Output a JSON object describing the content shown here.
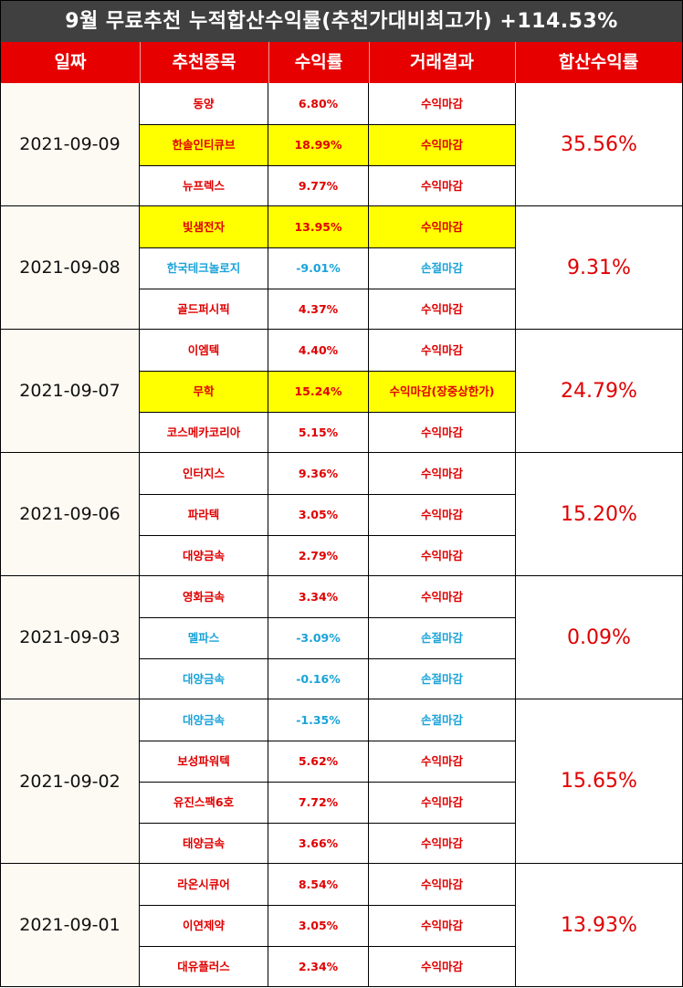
{
  "title": "9월 무료추천 누적합산수익률(추천가대비최고가) +114.53%",
  "headers": [
    "일짜",
    "추천종목",
    "수익률",
    "거래결과",
    "합산수익률"
  ],
  "colors": {
    "title_bg": "#404040",
    "header_bg": "#e60000",
    "highlight": "#ffff00",
    "profit": "#e00000",
    "loss": "#1aa3d9"
  },
  "groups": [
    {
      "date": "2021-09-09",
      "total": "35.56%",
      "rows": [
        {
          "name": "동양",
          "ret": "6.80%",
          "result": "수익마감",
          "tone": "up",
          "hl": false
        },
        {
          "name": "한솔인티큐브",
          "ret": "18.99%",
          "result": "수익마감",
          "tone": "up",
          "hl": true
        },
        {
          "name": "뉴프렉스",
          "ret": "9.77%",
          "result": "수익마감",
          "tone": "up",
          "hl": false
        }
      ]
    },
    {
      "date": "2021-09-08",
      "total": "9.31%",
      "rows": [
        {
          "name": "빛샘전자",
          "ret": "13.95%",
          "result": "수익마감",
          "tone": "up",
          "hl": true
        },
        {
          "name": "한국테크놀로지",
          "ret": "-9.01%",
          "result": "손절마감",
          "tone": "down",
          "hl": false
        },
        {
          "name": "골드퍼시픽",
          "ret": "4.37%",
          "result": "수익마감",
          "tone": "up",
          "hl": false
        }
      ]
    },
    {
      "date": "2021-09-07",
      "total": "24.79%",
      "rows": [
        {
          "name": "이엠텍",
          "ret": "4.40%",
          "result": "수익마감",
          "tone": "up",
          "hl": false
        },
        {
          "name": "무학",
          "ret": "15.24%",
          "result": "수익마감(장중상한가)",
          "tone": "up",
          "hl": true
        },
        {
          "name": "코스메카코리아",
          "ret": "5.15%",
          "result": "수익마감",
          "tone": "up",
          "hl": false
        }
      ]
    },
    {
      "date": "2021-09-06",
      "total": "15.20%",
      "rows": [
        {
          "name": "인터지스",
          "ret": "9.36%",
          "result": "수익마감",
          "tone": "up",
          "hl": false
        },
        {
          "name": "파라텍",
          "ret": "3.05%",
          "result": "수익마감",
          "tone": "up",
          "hl": false
        },
        {
          "name": "대양금속",
          "ret": "2.79%",
          "result": "수익마감",
          "tone": "up",
          "hl": false
        }
      ]
    },
    {
      "date": "2021-09-03",
      "total": "0.09%",
      "rows": [
        {
          "name": "영화금속",
          "ret": "3.34%",
          "result": "수익마감",
          "tone": "up",
          "hl": false
        },
        {
          "name": "멜파스",
          "ret": "-3.09%",
          "result": "손절마감",
          "tone": "down",
          "hl": false
        },
        {
          "name": "대양금속",
          "ret": "-0.16%",
          "result": "손절마감",
          "tone": "down",
          "hl": false
        }
      ]
    },
    {
      "date": "2021-09-02",
      "total": "15.65%",
      "rows": [
        {
          "name": "대양금속",
          "ret": "-1.35%",
          "result": "손절마감",
          "tone": "down",
          "hl": false
        },
        {
          "name": "보성파워텍",
          "ret": "5.62%",
          "result": "수익마감",
          "tone": "up",
          "hl": false
        },
        {
          "name": "유진스팩6호",
          "ret": "7.72%",
          "result": "수익마감",
          "tone": "up",
          "hl": false
        },
        {
          "name": "태양금속",
          "ret": "3.66%",
          "result": "수익마감",
          "tone": "up",
          "hl": false
        }
      ]
    },
    {
      "date": "2021-09-01",
      "total": "13.93%",
      "rows": [
        {
          "name": "라온시큐어",
          "ret": "8.54%",
          "result": "수익마감",
          "tone": "up",
          "hl": false
        },
        {
          "name": "이연제약",
          "ret": "3.05%",
          "result": "수익마감",
          "tone": "up",
          "hl": false
        },
        {
          "name": "대유플러스",
          "ret": "2.34%",
          "result": "수익마감",
          "tone": "up",
          "hl": false
        }
      ]
    }
  ]
}
